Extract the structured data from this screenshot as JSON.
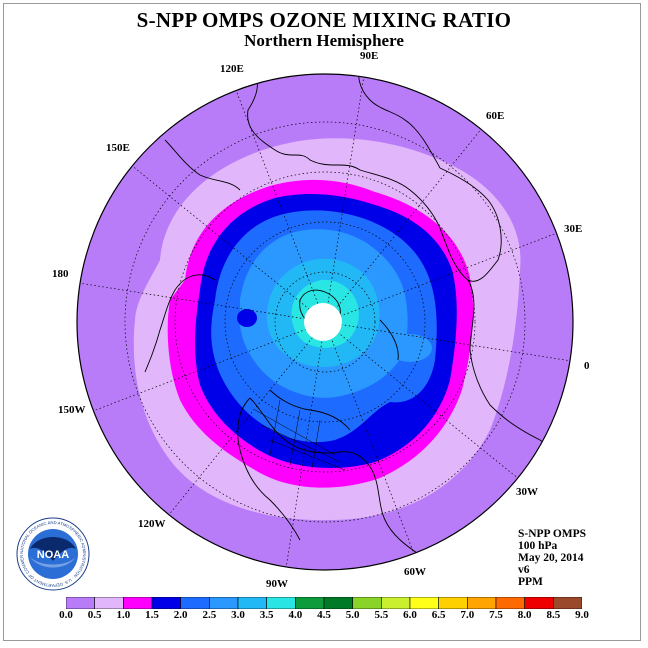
{
  "title": "S-NPP OMPS OZONE MIXING RATIO",
  "subtitle": "Northern Hemisphere",
  "longitude_labels": [
    "90E",
    "60E",
    "30E",
    "0",
    "30W",
    "60W",
    "90W",
    "120W",
    "150W",
    "180",
    "150E",
    "120E"
  ],
  "info": {
    "instrument": "S-NPP OMPS",
    "level": "100 hPa",
    "date": "May 20, 2014",
    "version": "v6",
    "units": "PPM"
  },
  "logo": {
    "text": "NOAA",
    "ring_text": "NATIONAL OCEANIC AND ATMOSPHERIC ADMINISTRATION · U.S. DEPARTMENT OF COMMERCE"
  },
  "colorbar": {
    "ticks": [
      "0.0",
      "0.5",
      "1.0",
      "1.5",
      "2.0",
      "2.5",
      "3.0",
      "3.5",
      "4.0",
      "4.5",
      "5.0",
      "5.5",
      "6.0",
      "6.5",
      "7.0",
      "7.5",
      "8.0",
      "8.5",
      "9.0"
    ],
    "colors": [
      "#b87cf8",
      "#e2b6fa",
      "#ff00ff",
      "#0000e8",
      "#1e6cff",
      "#2a98ff",
      "#22b8f6",
      "#29e6e4",
      "#0e9b3c",
      "#007a27",
      "#8ad42a",
      "#c9ef2e",
      "#ffff1a",
      "#ffd000",
      "#ffa400",
      "#ff6a00",
      "#ee0000",
      "#9a4a2a"
    ]
  }
}
